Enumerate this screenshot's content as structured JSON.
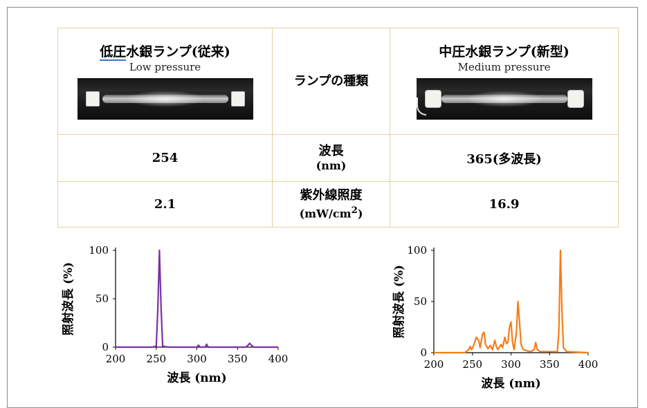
{
  "table": {
    "low": {
      "title_jp_a": "低圧",
      "title_jp_b": "水銀ランプ(従来)",
      "subtitle": "Low pressure"
    },
    "medium": {
      "title_jp": "中圧水銀ランプ(新型)",
      "subtitle": "Medium pressure"
    },
    "row_type_label": "ランプの種類",
    "row_wavelength_label": "波長",
    "row_wavelength_unit": "(nm)",
    "row_wavelength_low": "254",
    "row_wavelength_medium": "365(多波長)",
    "row_irradiance_label": "紫外線照度",
    "row_irradiance_unit_a": "(mW/cm",
    "row_irradiance_unit_sup": "2",
    "row_irradiance_unit_b": ")",
    "row_irradiance_low": "2.1",
    "row_irradiance_medium": "16.9"
  },
  "colors": {
    "low_series": "#7b2fa3",
    "medium_series": "#f57c16",
    "table_border": "#e7cfa3"
  },
  "chart_data": [
    {
      "type": "line",
      "xlabel": "波長 (nm)",
      "ylabel": "照射波長 (%)",
      "xlim": [
        200,
        400
      ],
      "ylim": [
        0,
        100
      ],
      "xticks": [
        "200",
        "250",
        "300",
        "350",
        "400"
      ],
      "yticks": [
        "0",
        "50",
        "100"
      ],
      "grid": false,
      "series": [
        {
          "color": "#7b2fa3",
          "points": [
            [
              200,
              0
            ],
            [
              245,
              0
            ],
            [
              250,
              1
            ],
            [
              252,
              40
            ],
            [
              254,
              100
            ],
            [
              256,
              40
            ],
            [
              258,
              1
            ],
            [
              265,
              0
            ],
            [
              300,
              0
            ],
            [
              302,
              2
            ],
            [
              304,
              0
            ],
            [
              310,
              0
            ],
            [
              312,
              3
            ],
            [
              314,
              0
            ],
            [
              360,
              0
            ],
            [
              363,
              2
            ],
            [
              365,
              4
            ],
            [
              367,
              2
            ],
            [
              370,
              0
            ],
            [
              400,
              0
            ]
          ]
        }
      ]
    },
    {
      "type": "line",
      "xlabel": "波長 (nm)",
      "ylabel": "照射波長 (%)",
      "xlim": [
        200,
        400
      ],
      "ylim": [
        0,
        100
      ],
      "xticks": [
        "200",
        "250",
        "300",
        "350",
        "400"
      ],
      "yticks": [
        "0",
        "50",
        "100"
      ],
      "grid": false,
      "series": [
        {
          "color": "#f57c16",
          "points": [
            [
              200,
              0
            ],
            [
              240,
              0
            ],
            [
              245,
              3
            ],
            [
              247,
              6
            ],
            [
              249,
              3
            ],
            [
              252,
              8
            ],
            [
              255,
              15
            ],
            [
              258,
              12
            ],
            [
              260,
              5
            ],
            [
              263,
              18
            ],
            [
              265,
              20
            ],
            [
              267,
              8
            ],
            [
              270,
              4
            ],
            [
              273,
              7
            ],
            [
              276,
              3
            ],
            [
              279,
              12
            ],
            [
              281,
              6
            ],
            [
              283,
              3
            ],
            [
              287,
              8
            ],
            [
              289,
              5
            ],
            [
              292,
              15
            ],
            [
              294,
              9
            ],
            [
              296,
              10
            ],
            [
              298,
              25
            ],
            [
              300,
              30
            ],
            [
              302,
              10
            ],
            [
              304,
              3
            ],
            [
              307,
              20
            ],
            [
              309,
              50
            ],
            [
              311,
              30
            ],
            [
              313,
              8
            ],
            [
              316,
              3
            ],
            [
              320,
              2
            ],
            [
              325,
              1
            ],
            [
              330,
              3
            ],
            [
              332,
              10
            ],
            [
              334,
              3
            ],
            [
              338,
              1
            ],
            [
              345,
              1
            ],
            [
              355,
              1
            ],
            [
              360,
              1
            ],
            [
              362,
              20
            ],
            [
              364,
              100
            ],
            [
              366,
              40
            ],
            [
              368,
              5
            ],
            [
              372,
              1
            ],
            [
              400,
              0
            ]
          ]
        }
      ]
    }
  ]
}
